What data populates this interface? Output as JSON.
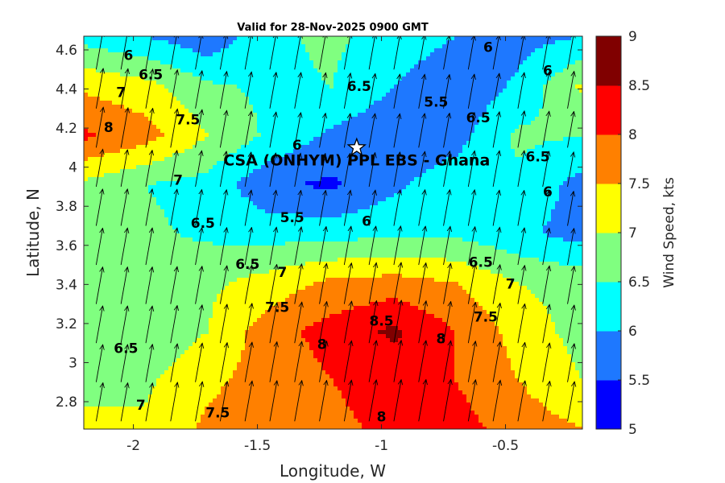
{
  "chart_data": {
    "type": "heatmap",
    "title": "Valid for 28-Nov-2025 0900 GMT",
    "xlabel": "Longitude, W",
    "ylabel": "Latitude, N",
    "xlim": [
      -2.2,
      -0.19
    ],
    "ylim": [
      2.66,
      4.67
    ],
    "xticks": [
      -2,
      -1.5,
      -1,
      -0.5
    ],
    "xtick_labels": [
      "-2",
      "-1.5",
      "-1",
      "-0.5"
    ],
    "yticks": [
      2.8,
      3.0,
      3.2,
      3.4,
      3.6,
      3.8,
      4.0,
      4.2,
      4.4,
      4.6
    ],
    "ytick_labels": [
      "2.8",
      "3",
      "3.2",
      "3.4",
      "3.6",
      "3.8",
      "4",
      "4.2",
      "4.4",
      "4.6"
    ],
    "colorbar": {
      "label": "Wind Speed, kts",
      "levels": [
        5,
        5.5,
        6,
        6.5,
        7,
        7.5,
        8,
        8.5,
        9
      ],
      "tick_labels": [
        "5",
        "5.5",
        "6",
        "6.5",
        "7",
        "7.5",
        "8",
        "8.5",
        "9"
      ],
      "colors": [
        "#0000ff",
        "#1e78ff",
        "#00ffff",
        "#80ff80",
        "#ffff00",
        "#ff8000",
        "#ff0000",
        "#800000"
      ]
    },
    "location": {
      "label": "CSA (ONHYM) PPL EBS  - Ghana",
      "lon": -1.1,
      "lat": 4.1,
      "marker": "white-star"
    },
    "grid_x": [
      -2.2,
      -1.95,
      -1.7,
      -1.45,
      -1.2,
      -0.95,
      -0.7,
      -0.45,
      -0.19
    ],
    "grid_y": [
      2.66,
      2.91,
      3.16,
      3.41,
      3.66,
      3.91,
      4.16,
      4.41,
      4.67
    ],
    "speed": [
      [
        7.2,
        7.1,
        7.6,
        7.8,
        7.9,
        8.1,
        8.2,
        7.8,
        7.5
      ],
      [
        6.8,
        6.9,
        7.4,
        7.7,
        8.0,
        8.2,
        8.0,
        7.5,
        7.0
      ],
      [
        6.7,
        6.6,
        7.0,
        7.8,
        8.2,
        8.6,
        8.0,
        7.3,
        6.8
      ],
      [
        6.6,
        6.7,
        6.9,
        7.2,
        7.6,
        7.7,
        7.5,
        7.0,
        6.8
      ],
      [
        6.5,
        6.6,
        6.4,
        6.3,
        6.3,
        6.4,
        6.4,
        6.1,
        5.8
      ],
      [
        6.9,
        6.5,
        6.3,
        5.6,
        5.4,
        5.9,
        6.3,
        6.4,
        5.8
      ],
      [
        8.1,
        7.7,
        7.0,
        6.4,
        5.9,
        5.6,
        5.8,
        6.6,
        6.5
      ],
      [
        7.4,
        7.2,
        6.6,
        6.4,
        6.5,
        6.0,
        5.6,
        6.1,
        7.1
      ],
      [
        6.3,
        6.0,
        5.6,
        6.4,
        6.6,
        6.3,
        6.0,
        5.8,
        6.0
      ]
    ],
    "vectors": {
      "x": [
        -2.15,
        -2.05,
        -1.95,
        -1.85,
        -1.75,
        -1.65,
        -1.55,
        -1.45,
        -1.35,
        -1.25,
        -1.15,
        -1.05,
        -0.95,
        -0.85,
        -0.75,
        -0.65,
        -0.55,
        -0.45,
        -0.35,
        -0.25
      ],
      "y": [
        2.7,
        2.9,
        3.1,
        3.3,
        3.5,
        3.7,
        3.9,
        4.1,
        4.3,
        4.5
      ],
      "dir_deg": 10,
      "length_note": "arrows point roughly north-northeast"
    },
    "contour_labels": [
      {
        "text": "6",
        "lon": -2.02,
        "lat": 4.57
      },
      {
        "text": "6.5",
        "lon": -1.93,
        "lat": 4.47
      },
      {
        "text": "7",
        "lon": -2.05,
        "lat": 4.38
      },
      {
        "text": "7.5",
        "lon": -1.78,
        "lat": 4.24
      },
      {
        "text": "8",
        "lon": -2.1,
        "lat": 4.2
      },
      {
        "text": "7",
        "lon": -1.82,
        "lat": 3.93
      },
      {
        "text": "6.5",
        "lon": -1.72,
        "lat": 3.71
      },
      {
        "text": "6",
        "lon": -1.34,
        "lat": 4.11
      },
      {
        "text": "5.5",
        "lon": -1.36,
        "lat": 3.74
      },
      {
        "text": "6",
        "lon": -1.06,
        "lat": 3.72
      },
      {
        "text": "6.5",
        "lon": -1.09,
        "lat": 4.41
      },
      {
        "text": "5.5",
        "lon": -0.78,
        "lat": 4.33
      },
      {
        "text": "6",
        "lon": -0.57,
        "lat": 4.61
      },
      {
        "text": "6",
        "lon": -0.33,
        "lat": 4.49
      },
      {
        "text": "6.5",
        "lon": -0.61,
        "lat": 4.25
      },
      {
        "text": "6.5",
        "lon": -0.37,
        "lat": 4.05
      },
      {
        "text": "6",
        "lon": -0.33,
        "lat": 3.87
      },
      {
        "text": "6.5",
        "lon": -1.54,
        "lat": 3.5
      },
      {
        "text": "7",
        "lon": -1.4,
        "lat": 3.46
      },
      {
        "text": "7.5",
        "lon": -1.42,
        "lat": 3.28
      },
      {
        "text": "6.5",
        "lon": -0.6,
        "lat": 3.51
      },
      {
        "text": "7",
        "lon": -0.48,
        "lat": 3.4
      },
      {
        "text": "7.5",
        "lon": -0.58,
        "lat": 3.23
      },
      {
        "text": "8.5",
        "lon": -1.0,
        "lat": 3.21
      },
      {
        "text": "8",
        "lon": -1.24,
        "lat": 3.09
      },
      {
        "text": "8",
        "lon": -0.76,
        "lat": 3.12
      },
      {
        "text": "6.5",
        "lon": -2.03,
        "lat": 3.07
      },
      {
        "text": "7",
        "lon": -1.97,
        "lat": 2.78
      },
      {
        "text": "7.5",
        "lon": -1.66,
        "lat": 2.74
      },
      {
        "text": "8",
        "lon": -1.0,
        "lat": 2.72
      }
    ]
  }
}
